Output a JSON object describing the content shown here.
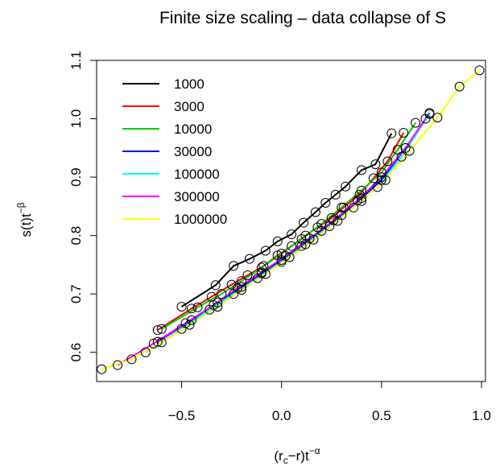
{
  "chart_data": {
    "type": "line",
    "title": "Finite size scaling – data collapse of S",
    "xlabel": {
      "base": "(r",
      "sub": "c",
      "mid": "−r)t",
      "sup": "−α"
    },
    "ylabel": {
      "base": "s(t)t",
      "sup": "−β"
    },
    "xlim": [
      -0.925,
      1.02
    ],
    "ylim": [
      0.55,
      1.1
    ],
    "xticks": [
      -0.5,
      0.0,
      0.5,
      1.0
    ],
    "xtick_labels": [
      "−0.5",
      "0.0",
      "0.5",
      "1.0"
    ],
    "yticks": [
      0.6,
      0.7,
      0.8,
      0.9,
      1.0,
      1.1
    ],
    "ytick_labels": [
      "0.6",
      "0.7",
      "0.8",
      "0.9",
      "1.0",
      "1.1"
    ],
    "legend_position": "top-left",
    "series": [
      {
        "name": "1000",
        "color": "#000000",
        "x": [
          -0.5,
          -0.33,
          -0.24,
          -0.16,
          -0.08,
          -0.02,
          0.05,
          0.11,
          0.17,
          0.22,
          0.27,
          0.32,
          0.4,
          0.47,
          0.55
        ],
        "y": [
          0.678,
          0.715,
          0.748,
          0.76,
          0.774,
          0.79,
          0.802,
          0.822,
          0.84,
          0.856,
          0.87,
          0.884,
          0.912,
          0.922,
          0.975
        ]
      },
      {
        "name": "3000",
        "color": "#ff0000",
        "x": [
          -0.62,
          -0.45,
          -0.35,
          -0.25,
          -0.17,
          -0.09,
          -0.02,
          0.05,
          0.12,
          0.18,
          0.25,
          0.31,
          0.39,
          0.46,
          0.53,
          0.61
        ],
        "y": [
          0.638,
          0.675,
          0.695,
          0.716,
          0.732,
          0.748,
          0.766,
          0.782,
          0.8,
          0.814,
          0.83,
          0.848,
          0.87,
          0.898,
          0.927,
          0.976
        ]
      },
      {
        "name": "10000",
        "color": "#00cd00",
        "x": [
          -0.6,
          -0.42,
          -0.3,
          -0.2,
          -0.1,
          0.0,
          0.1,
          0.2,
          0.3,
          0.4,
          0.5,
          0.58,
          0.67
        ],
        "y": [
          0.64,
          0.677,
          0.7,
          0.722,
          0.745,
          0.769,
          0.794,
          0.82,
          0.848,
          0.877,
          0.908,
          0.947,
          0.993
        ]
      },
      {
        "name": "30000",
        "color": "#0000ff",
        "x": [
          -0.62,
          -0.45,
          -0.32,
          -0.2,
          -0.1,
          0.0,
          0.1,
          0.2,
          0.3,
          0.4,
          0.5,
          0.62,
          0.74
        ],
        "y": [
          0.618,
          0.655,
          0.685,
          0.712,
          0.735,
          0.758,
          0.782,
          0.808,
          0.835,
          0.864,
          0.895,
          0.95,
          1.01
        ]
      },
      {
        "name": "100000",
        "color": "#00ffff",
        "x": [
          -0.68,
          -0.5,
          -0.36,
          -0.24,
          -0.12,
          0.0,
          0.12,
          0.24,
          0.36,
          0.48,
          0.6,
          0.74
        ],
        "y": [
          0.6,
          0.64,
          0.673,
          0.7,
          0.727,
          0.755,
          0.785,
          0.816,
          0.848,
          0.883,
          0.935,
          1.008
        ]
      },
      {
        "name": "300000",
        "color": "#ff00ff",
        "x": [
          -0.82,
          -0.64,
          -0.48,
          -0.34,
          -0.22,
          -0.1,
          0.02,
          0.14,
          0.26,
          0.38,
          0.5,
          0.62,
          0.72
        ],
        "y": [
          0.578,
          0.615,
          0.65,
          0.681,
          0.71,
          0.737,
          0.765,
          0.795,
          0.826,
          0.86,
          0.9,
          0.95,
          1.0
        ]
      },
      {
        "name": "1000000",
        "color": "#ffff00",
        "x": [
          -0.9,
          -0.75,
          -0.6,
          -0.46,
          -0.32,
          -0.2,
          -0.08,
          0.04,
          0.16,
          0.28,
          0.4,
          0.52,
          0.64,
          0.78,
          0.89,
          0.99
        ],
        "y": [
          0.571,
          0.588,
          0.617,
          0.647,
          0.678,
          0.707,
          0.734,
          0.763,
          0.793,
          0.825,
          0.859,
          0.895,
          0.945,
          1.002,
          1.055,
          1.083
        ]
      }
    ]
  }
}
